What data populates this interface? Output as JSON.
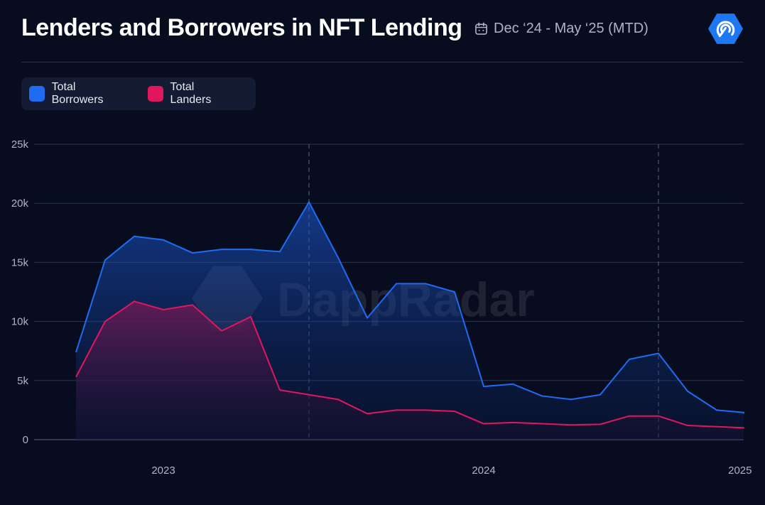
{
  "header": {
    "title": "Lenders and Borrowers in NFT Lending",
    "date_range": "Dec ‘24 - May ‘25 (MTD)"
  },
  "watermark": "DappRadar",
  "colors": {
    "borrowers": "#1f6cf2",
    "landers": "#e0165e",
    "background": "#070d1f",
    "grid": "#2d3654"
  },
  "chart_data": {
    "type": "area",
    "title": "Lenders and Borrowers in NFT Lending",
    "ylim": [
      0,
      25000
    ],
    "y_ticks": [
      {
        "value": 0,
        "label": "0"
      },
      {
        "value": 5000,
        "label": "5k"
      },
      {
        "value": 10000,
        "label": "10k"
      },
      {
        "value": 15000,
        "label": "15k"
      },
      {
        "value": 20000,
        "label": "20k"
      },
      {
        "value": 25000,
        "label": "25k"
      }
    ],
    "x": [
      "2022-10",
      "2022-11",
      "2022-12",
      "2023-01",
      "2023-02",
      "2023-03",
      "2023-04",
      "2023-05",
      "2023-06",
      "2023-07",
      "2023-08",
      "2023-09",
      "2023-10",
      "2023-11",
      "2023-12",
      "2024-01",
      "2024-02",
      "2024-03",
      "2024-04",
      "2024-05",
      "2024-06",
      "2024-07",
      "2024-08",
      "2024-09",
      "2024-10"
    ],
    "x_ticks": [
      {
        "label": "2023",
        "index": 3
      },
      {
        "label": "2024",
        "index": 14
      },
      {
        "label": "2025",
        "index": 22.8
      }
    ],
    "highlight_indices": [
      8,
      20
    ],
    "series": [
      {
        "name": "Total Borrowers",
        "color": "#1f6cf2",
        "values": [
          7400,
          15200,
          17200,
          16900,
          15800,
          16100,
          16100,
          15900,
          20100,
          15400,
          10300,
          13200,
          13200,
          12500,
          4500,
          4700,
          3700,
          3400,
          3800,
          6800,
          7300,
          4100,
          2500,
          2300,
          2200
        ]
      },
      {
        "name": "Total Landers",
        "color": "#e0165e",
        "values": [
          5300,
          10000,
          11700,
          11000,
          11400,
          9200,
          10400,
          4200,
          3800,
          3400,
          2200,
          2500,
          2500,
          2400,
          1350,
          1450,
          1350,
          1250,
          1300,
          2000,
          2000,
          1200,
          1100,
          1000,
          950
        ]
      }
    ],
    "legend": {
      "position": "top-left",
      "items": [
        "Total Borrowers",
        "Total Landers"
      ]
    },
    "grid": true
  }
}
